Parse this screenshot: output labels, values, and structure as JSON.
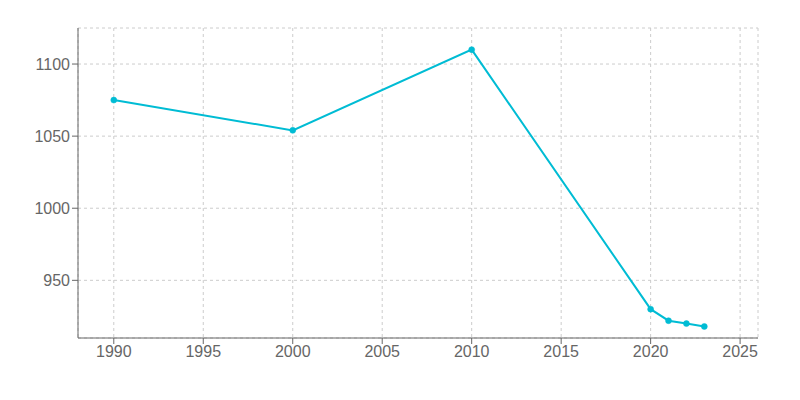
{
  "chart_data": {
    "type": "line",
    "x": [
      1990,
      2000,
      2010,
      2020,
      2021,
      2022,
      2023
    ],
    "values": [
      1075,
      1054,
      1110,
      930,
      922,
      920,
      918
    ],
    "color": "#00bcd4",
    "marker": "circle",
    "xlim": [
      1988,
      2026
    ],
    "ylim": [
      910,
      1125
    ],
    "xticks": [
      1990,
      1995,
      2000,
      2005,
      2010,
      2015,
      2020,
      2025
    ],
    "yticks": [
      950,
      1000,
      1050,
      1100
    ],
    "grid": true
  }
}
